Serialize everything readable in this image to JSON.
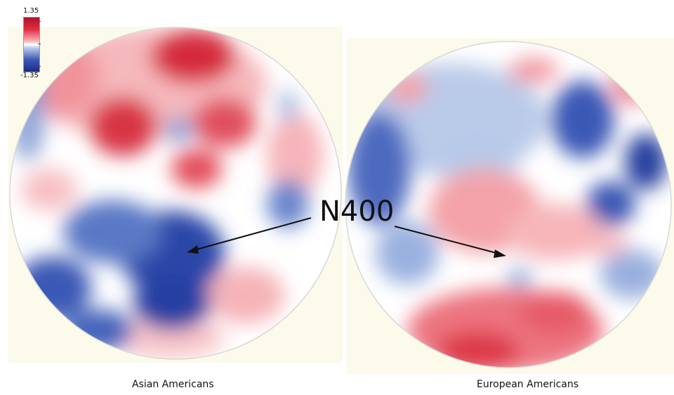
{
  "colorbar": {
    "max_label": "1.35",
    "min_label": "-1.35",
    "colors": [
      "#b0122a",
      "#ffffff",
      "#1c2a8a"
    ]
  },
  "annotation": {
    "label": "N400"
  },
  "panels": [
    {
      "caption": "Asian Americans"
    },
    {
      "caption": "European Americans"
    }
  ]
}
